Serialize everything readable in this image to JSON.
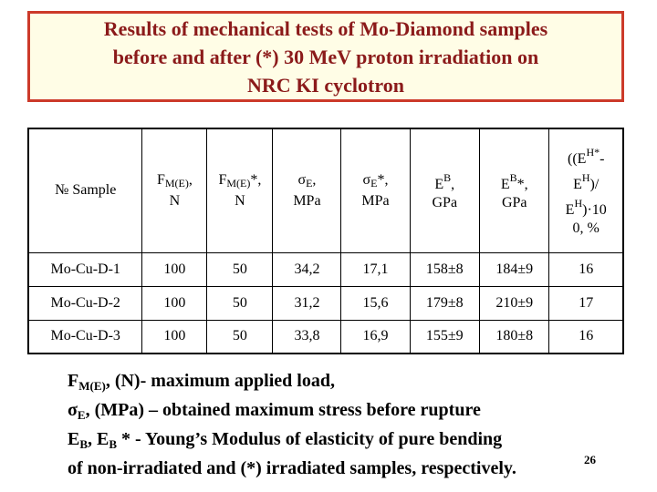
{
  "title": {
    "lines": [
      "Results of mechanical tests of Mo-Diamond samples",
      "before and after (*) 30 MeV proton irradiation on",
      "NRC KI cyclotron"
    ]
  },
  "table": {
    "headers": {
      "sample": "№ Sample",
      "force": {
        "main": "F",
        "sub": "M(E)",
        "tail": ",",
        "unit": "N"
      },
      "force_irr": {
        "main": "F",
        "sub": "M(E)",
        "tail": "*,",
        "unit": "N"
      },
      "stress": {
        "main": "σ",
        "sub": "E",
        "tail": ",",
        "unit": "MPa"
      },
      "stress_irr": {
        "main": "σ",
        "sub": "E",
        "tail": "*,",
        "unit": "MPa"
      },
      "modulus": {
        "main": "E",
        "sup": "B",
        "tail": ",",
        "unit": "GPa"
      },
      "modulus_irr": {
        "main": "E",
        "sup": "B",
        "tail": "*,",
        "unit": "GPa"
      },
      "change": {
        "line1a": "((E",
        "line1sup": "H*",
        "line1b": "-",
        "line2": "E",
        "line2sup": "H",
        "line2tail": ")/",
        "line3": "E",
        "line3sup": "H",
        "line3tail": ")·10",
        "line4": "0, %"
      }
    },
    "rows": [
      {
        "sample": "Mo-Cu-D-1",
        "f": "100",
        "f_irr": "50",
        "s": "34,2",
        "s_irr": "17,1",
        "e": "158±8",
        "e_irr": "184±9",
        "pct": "16"
      },
      {
        "sample": "Mo-Cu-D-2",
        "f": "100",
        "f_irr": "50",
        "s": "31,2",
        "s_irr": "15,6",
        "e": "179±8",
        "e_irr": "210±9",
        "pct": "17"
      },
      {
        "sample": "Mo-Cu-D-3",
        "f": "100",
        "f_irr": "50",
        "s": "33,8",
        "s_irr": "16,9",
        "e": "155±9",
        "e_irr": "180±8",
        "pct": "16"
      }
    ]
  },
  "notes": {
    "line1": {
      "a": "F",
      "sub": "M(E)",
      "b": ", (N)- maximum applied load,"
    },
    "line2": {
      "a": "σ",
      "sub": "E",
      "b": ", (MPa) – obtained maximum stress before rupture"
    },
    "line3": {
      "a": "E",
      "sub1": "B",
      "b": ", E",
      "sub2": "B",
      "c": " * - Young’s Modulus of elasticity of pure bending"
    },
    "line4": "of non-irradiated and (*) irradiated samples, respectively."
  },
  "page_number": "26",
  "colors": {
    "title_text": "#8b1a1a",
    "title_border": "#cc3a2a",
    "title_bg": "#fffde6"
  }
}
